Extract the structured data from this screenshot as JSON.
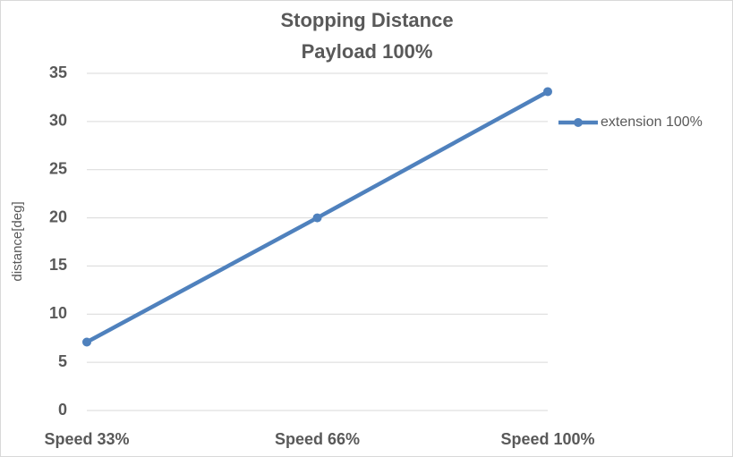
{
  "chart_data": {
    "type": "line",
    "title": "Stopping Distance",
    "subtitle": "Payload 100%",
    "y_label": "distance[deg]",
    "categories": [
      "Speed 33%",
      "Speed 66%",
      "Speed 100%"
    ],
    "series": [
      {
        "name": "extension 100%",
        "color": "#4f81bd",
        "values": [
          7.1,
          20,
          33.1
        ]
      }
    ],
    "ylim": [
      0,
      35
    ],
    "yticks": [
      0,
      5,
      10,
      15,
      20,
      25,
      30,
      35
    ],
    "grid": true,
    "legend": "right"
  }
}
